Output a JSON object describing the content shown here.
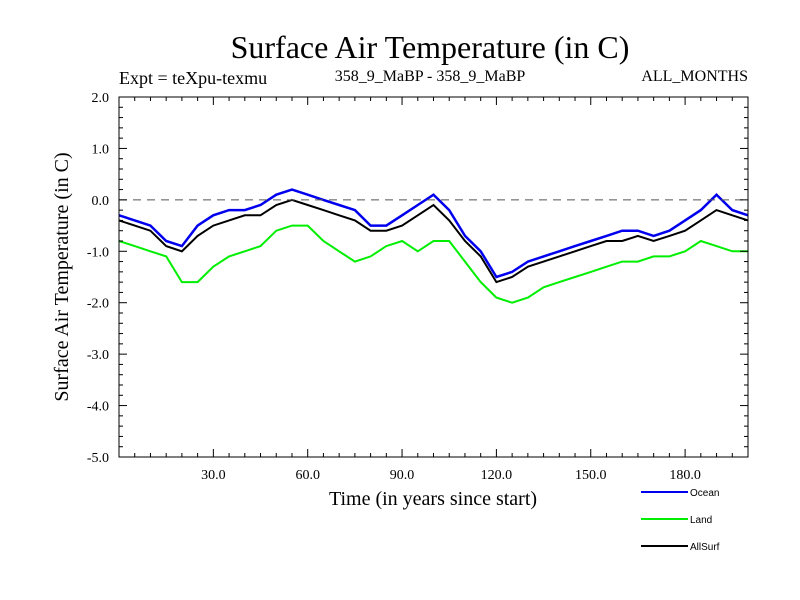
{
  "chart_data": {
    "type": "line",
    "title": "Surface Air Temperature (in C)",
    "subtitle_left": "Expt = teXpu-texmu",
    "subtitle_center": "358_9_MaBP - 358_9_MaBP",
    "subtitle_right": "ALL_MONTHS",
    "xlabel": "Time (in years since start)",
    "ylabel": "Surface Air Temperature (in C)",
    "xlim": [
      0,
      200
    ],
    "ylim": [
      -5.0,
      2.0
    ],
    "x_ticks": [
      30,
      60,
      90,
      120,
      150,
      180
    ],
    "x_tick_labels": [
      "30.0",
      "60.0",
      "90.0",
      "120.0",
      "150.0",
      "180.0"
    ],
    "y_ticks": [
      2.0,
      1.0,
      0.0,
      -1.0,
      -2.0,
      -3.0,
      -4.0,
      -5.0
    ],
    "y_tick_labels": [
      "2.0",
      "1.0",
      "0.0",
      "-1.0",
      "-2.0",
      "-3.0",
      "-4.0",
      "-5.0"
    ],
    "reference_line": 0.0,
    "series": [
      {
        "name": "Land",
        "color": "#00ee00",
        "x": [
          0,
          5,
          10,
          15,
          20,
          25,
          30,
          35,
          40,
          45,
          50,
          55,
          60,
          65,
          70,
          75,
          80,
          85,
          90,
          95,
          100,
          105,
          110,
          115,
          120,
          125,
          130,
          135,
          140,
          145,
          150,
          155,
          160,
          165,
          170,
          175,
          180,
          185,
          190,
          195,
          200
        ],
        "values": [
          -0.8,
          -0.9,
          -1.0,
          -1.1,
          -1.6,
          -1.6,
          -1.3,
          -1.1,
          -1.0,
          -0.9,
          -0.6,
          -0.5,
          -0.5,
          -0.8,
          -1.0,
          -1.2,
          -1.1,
          -0.9,
          -0.8,
          -1.0,
          -0.8,
          -0.8,
          -1.2,
          -1.6,
          -1.9,
          -2.0,
          -1.9,
          -1.7,
          -1.6,
          -1.5,
          -1.4,
          -1.3,
          -1.2,
          -1.2,
          -1.1,
          -1.1,
          -1.0,
          -0.8,
          -0.9,
          -1.0,
          -1.0
        ]
      },
      {
        "name": "Ocean",
        "color": "#0000ee",
        "x": [
          0,
          5,
          10,
          15,
          20,
          25,
          30,
          35,
          40,
          45,
          50,
          55,
          60,
          65,
          70,
          75,
          80,
          85,
          90,
          95,
          100,
          105,
          110,
          115,
          120,
          125,
          130,
          135,
          140,
          145,
          150,
          155,
          160,
          165,
          170,
          175,
          180,
          185,
          190,
          195,
          200
        ],
        "values": [
          -0.3,
          -0.4,
          -0.5,
          -0.8,
          -0.9,
          -0.5,
          -0.3,
          -0.2,
          -0.2,
          -0.1,
          0.1,
          0.2,
          0.1,
          0.0,
          -0.1,
          -0.2,
          -0.5,
          -0.5,
          -0.3,
          -0.1,
          0.1,
          -0.2,
          -0.7,
          -1.0,
          -1.5,
          -1.4,
          -1.2,
          -1.1,
          -1.0,
          -0.9,
          -0.8,
          -0.7,
          -0.6,
          -0.6,
          -0.7,
          -0.6,
          -0.4,
          -0.2,
          0.1,
          -0.2,
          -0.3
        ]
      },
      {
        "name": "AllSurf",
        "color": "#000000",
        "x": [
          0,
          5,
          10,
          15,
          20,
          25,
          30,
          35,
          40,
          45,
          50,
          55,
          60,
          65,
          70,
          75,
          80,
          85,
          90,
          95,
          100,
          105,
          110,
          115,
          120,
          125,
          130,
          135,
          140,
          145,
          150,
          155,
          160,
          165,
          170,
          175,
          180,
          185,
          190,
          195,
          200
        ],
        "values": [
          -0.4,
          -0.5,
          -0.6,
          -0.9,
          -1.0,
          -0.7,
          -0.5,
          -0.4,
          -0.3,
          -0.3,
          -0.1,
          0.0,
          -0.1,
          -0.2,
          -0.3,
          -0.4,
          -0.6,
          -0.6,
          -0.5,
          -0.3,
          -0.1,
          -0.4,
          -0.8,
          -1.1,
          -1.6,
          -1.5,
          -1.3,
          -1.2,
          -1.1,
          -1.0,
          -0.9,
          -0.8,
          -0.8,
          -0.7,
          -0.8,
          -0.7,
          -0.6,
          -0.4,
          -0.2,
          -0.3,
          -0.4
        ]
      }
    ],
    "legend": [
      {
        "label": "Ocean",
        "color": "#0000ee"
      },
      {
        "label": "Land",
        "color": "#00ee00"
      },
      {
        "label": "AllSurf",
        "color": "#000000"
      }
    ]
  }
}
